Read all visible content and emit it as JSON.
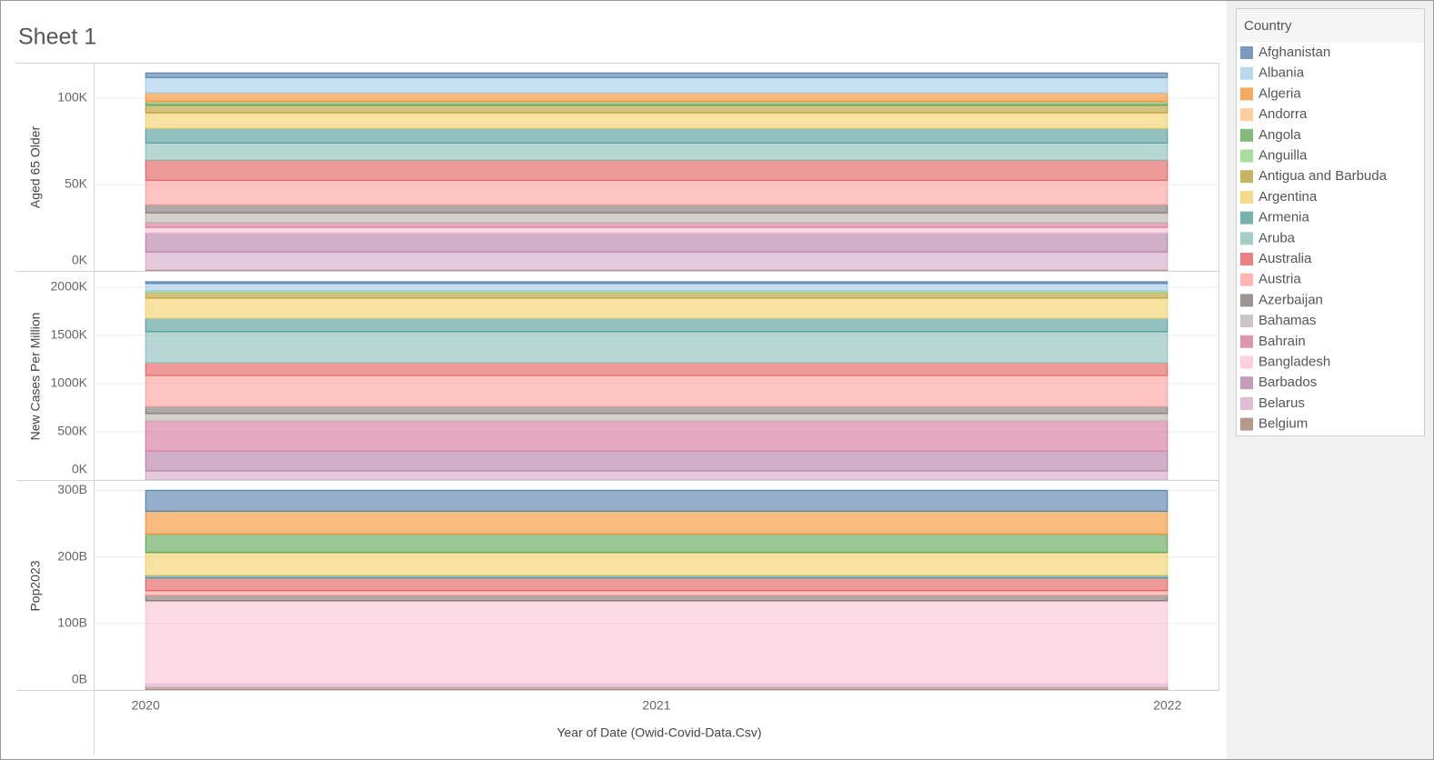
{
  "chart_data": {
    "type": "area",
    "stacked": true,
    "title": "Sheet 1",
    "x_label": "Year of Date (Owid-Covid-Data.Csv)",
    "x": [
      2020,
      2021,
      2022
    ],
    "xlim": [
      2019.9,
      2022.1
    ],
    "xticks": [
      2020,
      2021,
      2022
    ],
    "grid": true,
    "legend": {
      "title": "Country",
      "position": "right"
    },
    "panes": [
      {
        "y_label": "Aged 65 Older",
        "ylim": [
          0,
          120000
        ],
        "yticks": [
          {
            "value": 0,
            "label": "0K"
          },
          {
            "value": 50000,
            "label": "50K"
          },
          {
            "value": 100000,
            "label": "100K"
          }
        ]
      },
      {
        "y_label": "New Cases Per Million",
        "ylim": [
          0,
          2150000
        ],
        "yticks": [
          {
            "value": 0,
            "label": "0K"
          },
          {
            "value": 500000,
            "label": "500K"
          },
          {
            "value": 1000000,
            "label": "1000K"
          },
          {
            "value": 1500000,
            "label": "1500K"
          },
          {
            "value": 2000000,
            "label": "2000K"
          }
        ]
      },
      {
        "y_label": "Pop2023",
        "ylim": [
          0,
          313000000000
        ],
        "yticks": [
          {
            "value": 0,
            "label": "0B"
          },
          {
            "value": 100000000000,
            "label": "100B"
          },
          {
            "value": 200000000000,
            "label": "200B"
          },
          {
            "value": 300000000000,
            "label": "300B"
          }
        ]
      }
    ],
    "series": [
      {
        "name": "Afghanistan",
        "color": "#4e79a7",
        "values": [
          [
            2600,
            2600,
            2600
          ],
          [
            19000,
            19000,
            19000
          ],
          [
            31500000000,
            31500000000,
            31500000000
          ]
        ]
      },
      {
        "name": "Albania",
        "color": "#a0cbe8",
        "values": [
          [
            8900,
            8900,
            8900
          ],
          [
            76000,
            76000,
            76000
          ],
          [
            0,
            0,
            0
          ]
        ]
      },
      {
        "name": "Algeria",
        "color": "#f28e2b",
        "values": [
          [
            4800,
            4800,
            4800
          ],
          [
            0,
            0,
            0
          ],
          [
            34500000000,
            34500000000,
            34500000000
          ]
        ]
      },
      {
        "name": "Andorra",
        "color": "#ffbe7d",
        "values": [
          [
            500,
            500,
            500
          ],
          [
            0,
            0,
            0
          ],
          [
            0,
            0,
            0
          ]
        ]
      },
      {
        "name": "Angola",
        "color": "#59a14f",
        "values": [
          [
            1800,
            1800,
            1800
          ],
          [
            0,
            0,
            0
          ],
          [
            27400000000,
            27400000000,
            27400000000
          ]
        ]
      },
      {
        "name": "Anguilla",
        "color": "#8cd17d",
        "values": [
          [
            300,
            300,
            300
          ],
          [
            19000,
            19000,
            19000
          ],
          [
            0,
            0,
            0
          ]
        ]
      },
      {
        "name": "Antigua and Barbuda",
        "color": "#b6992d",
        "values": [
          [
            4200,
            4200,
            4200
          ],
          [
            56000,
            56000,
            56000
          ],
          [
            0,
            0,
            0
          ]
        ]
      },
      {
        "name": "Argentina",
        "color": "#f1ce63",
        "values": [
          [
            9000,
            9000,
            9000
          ],
          [
            208000,
            208000,
            208000
          ],
          [
            34200000000,
            34200000000,
            34200000000
          ]
        ]
      },
      {
        "name": "Armenia",
        "color": "#499894",
        "values": [
          [
            8400,
            8400,
            8400
          ],
          [
            141000,
            141000,
            141000
          ],
          [
            4100000000,
            4100000000,
            4100000000
          ]
        ]
      },
      {
        "name": "Aruba",
        "color": "#86bcb6",
        "values": [
          [
            10000,
            10000,
            10000
          ],
          [
            321000,
            321000,
            321000
          ],
          [
            0,
            0,
            0
          ]
        ]
      },
      {
        "name": "Australia",
        "color": "#e15759",
        "values": [
          [
            11600,
            11600,
            11600
          ],
          [
            132000,
            132000,
            132000
          ],
          [
            19200000000,
            19200000000,
            19200000000
          ]
        ]
      },
      {
        "name": "Austria",
        "color": "#ff9d9a",
        "values": [
          [
            14200,
            14200,
            14200
          ],
          [
            321000,
            321000,
            321000
          ],
          [
            6800000000,
            6800000000,
            6800000000
          ]
        ]
      },
      {
        "name": "Azerbaijan",
        "color": "#79706e",
        "values": [
          [
            4700,
            4700,
            4700
          ],
          [
            75000,
            75000,
            75000
          ],
          [
            8300000000,
            8300000000,
            8300000000
          ]
        ]
      },
      {
        "name": "Bahamas",
        "color": "#bab0ac",
        "values": [
          [
            5800,
            5800,
            5800
          ],
          [
            76000,
            76000,
            76000
          ],
          [
            0,
            0,
            0
          ]
        ]
      },
      {
        "name": "Bahrain",
        "color": "#d37295",
        "values": [
          [
            2600,
            2600,
            2600
          ],
          [
            311000,
            311000,
            311000
          ],
          [
            0,
            0,
            0
          ]
        ]
      },
      {
        "name": "Bangladesh",
        "color": "#fabfd2",
        "values": [
          [
            3200,
            3200,
            3200
          ],
          [
            0,
            0,
            0
          ],
          [
            124600000000,
            124600000000,
            124600000000
          ]
        ]
      },
      {
        "name": "Barbados",
        "color": "#b07aa1",
        "values": [
          [
            11000,
            11000,
            11000
          ],
          [
            208000,
            208000,
            208000
          ],
          [
            0,
            0,
            0
          ]
        ]
      },
      {
        "name": "Belarus",
        "color": "#d4a6c8",
        "values": [
          [
            10500,
            10500,
            10500
          ],
          [
            94000,
            94000,
            94000
          ],
          [
            5500000000,
            5500000000,
            5500000000
          ]
        ]
      },
      {
        "name": "Belgium",
        "color": "#9d7660",
        "values": [
          [
            500,
            500,
            500
          ],
          [
            0,
            0,
            0
          ],
          [
            4100000000,
            4100000000,
            4100000000
          ]
        ]
      }
    ]
  }
}
